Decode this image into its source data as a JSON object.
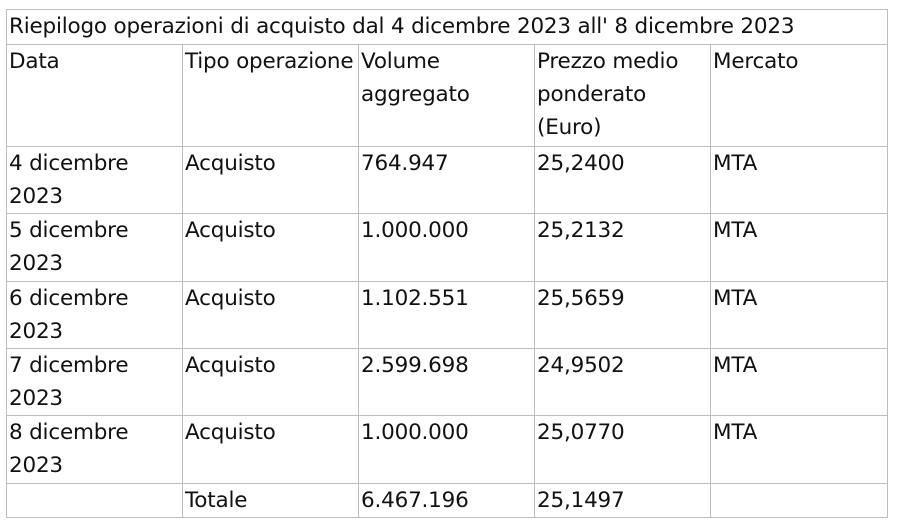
{
  "table": {
    "title": "Riepilogo operazioni di acquisto dal 4 dicembre 2023 all' 8 dicembre 2023",
    "headers": [
      "Data",
      "Tipo operazione",
      "Volume aggregato",
      "Prezzo medio ponderato (Euro)",
      "Mercato"
    ],
    "rows": [
      {
        "date": "4 dicembre 2023",
        "type": "Acquisto",
        "volume": "764.947",
        "price": "25,2400",
        "market": "MTA"
      },
      {
        "date": "5 dicembre 2023",
        "type": "Acquisto",
        "volume": "1.000.000",
        "price": "25,2132",
        "market": "MTA"
      },
      {
        "date": "6 dicembre 2023",
        "type": "Acquisto",
        "volume": "1.102.551",
        "price": "25,5659",
        "market": "MTA"
      },
      {
        "date": "7 dicembre 2023",
        "type": "Acquisto",
        "volume": "2.599.698",
        "price": "24,9502",
        "market": "MTA"
      },
      {
        "date": "8 dicembre 2023",
        "type": "Acquisto",
        "volume": "1.000.000",
        "price": "25,0770",
        "market": "MTA"
      }
    ],
    "total": {
      "label": "Totale",
      "volume": "6.467.196",
      "price": "25,1497"
    }
  }
}
